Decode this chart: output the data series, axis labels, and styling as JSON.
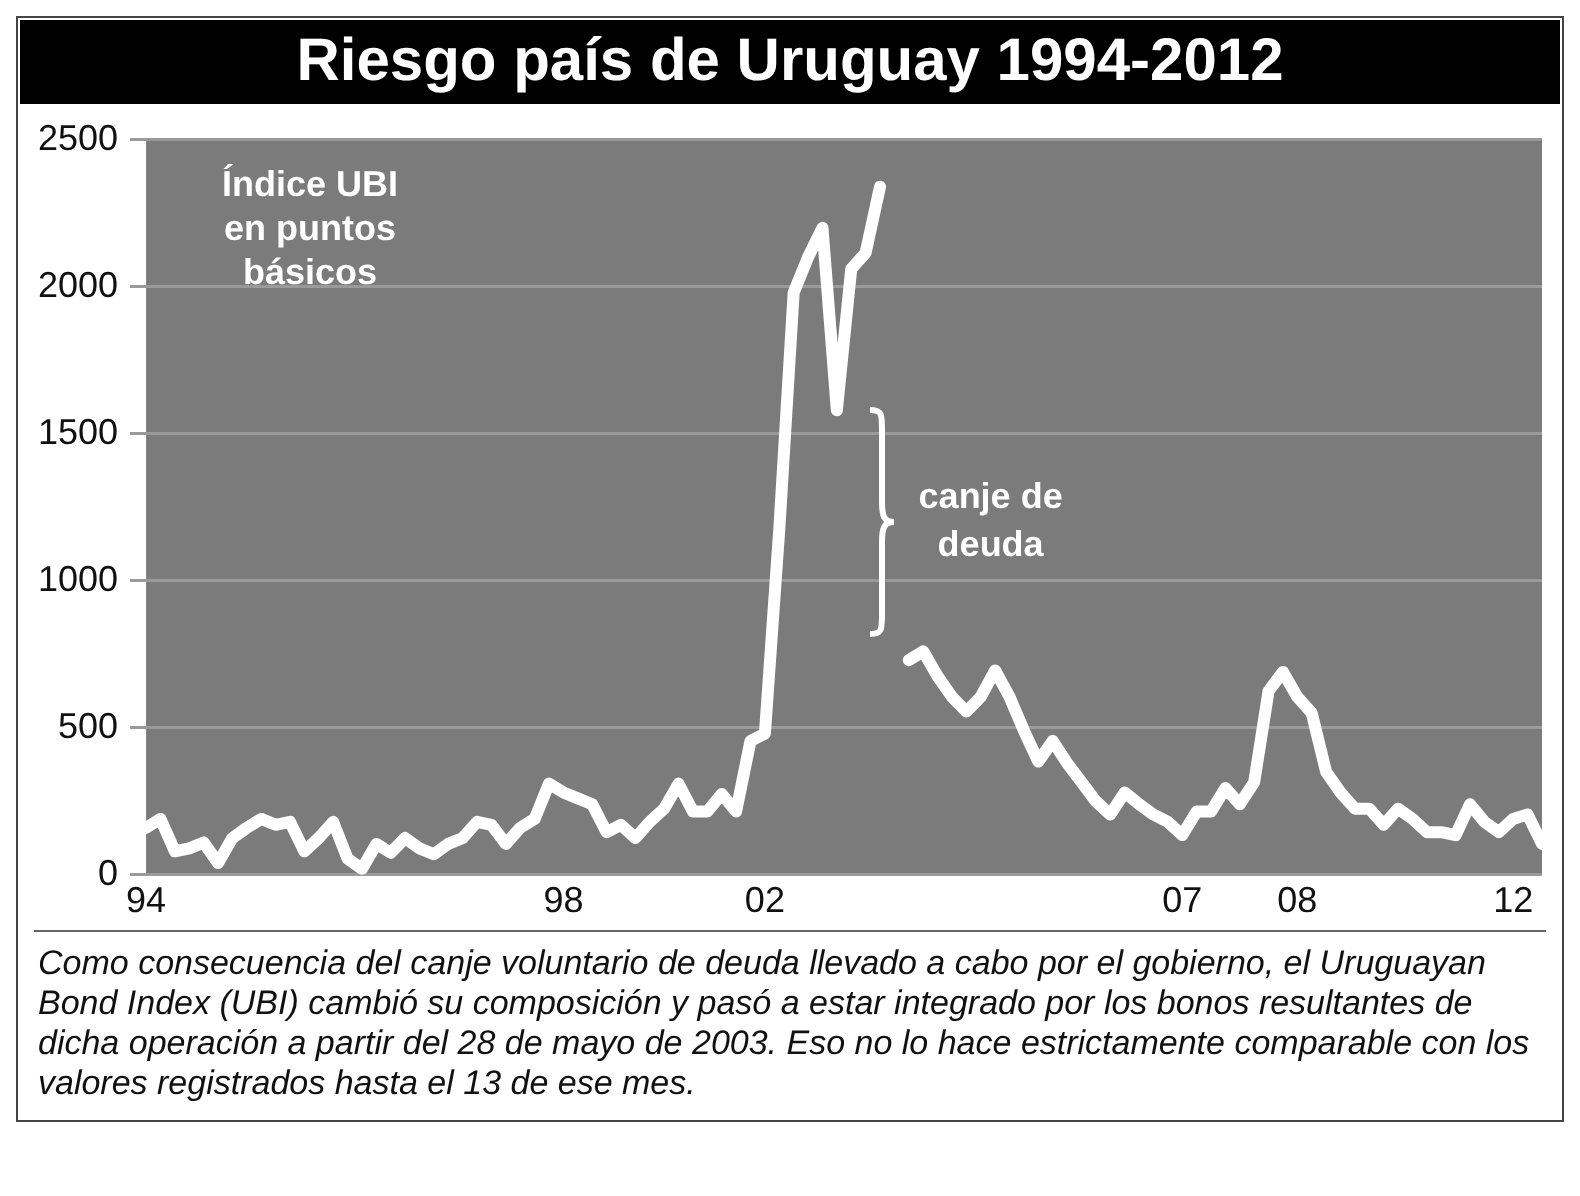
{
  "chart_data": {
    "type": "line",
    "title": "Riesgo país de Uruguay 1994-2012",
    "ylabel": "Índice UBI en puntos básicos",
    "categories": [
      "94",
      null,
      null,
      null,
      null,
      null,
      null,
      null,
      null,
      null,
      null,
      null,
      null,
      null,
      null,
      null,
      null,
      null,
      null,
      null,
      null,
      null,
      null,
      null,
      null,
      null,
      null,
      null,
      null,
      "98",
      null,
      null,
      null,
      null,
      null,
      null,
      null,
      null,
      null,
      null,
      null,
      null,
      null,
      "02",
      null,
      null,
      null,
      null,
      null,
      null,
      null,
      null,
      null,
      null,
      null,
      null,
      null,
      null,
      null,
      null,
      null,
      null,
      null,
      null,
      null,
      null,
      null,
      null,
      null,
      null,
      null,
      null,
      "07",
      null,
      null,
      null,
      null,
      null,
      null,
      null,
      "08",
      null,
      null,
      null,
      null,
      null,
      null,
      null,
      null,
      null,
      null,
      null,
      null,
      null,
      null,
      "12",
      null,
      null
    ],
    "ylim": [
      0,
      2500
    ],
    "yticks": [
      0,
      500,
      1000,
      1500,
      2000,
      2500
    ],
    "grid": "y",
    "series": [
      {
        "color": "#ffffff",
        "values": [
          160,
          190,
          80,
          90,
          110,
          40,
          125,
          160,
          190,
          170,
          180,
          80,
          125,
          180,
          55,
          20,
          105,
          75,
          125,
          90,
          70,
          105,
          125,
          180,
          170,
          105,
          160,
          190,
          310,
          280,
          260,
          240,
          145,
          170,
          125,
          180,
          225,
          310,
          215,
          215,
          275,
          215,
          455,
          480,
          1175,
          1980,
          2100,
          2200,
          1580,
          2060,
          2115,
          2340,
          null,
          730,
          760,
          675,
          605,
          555,
          605,
          695,
          605,
          490,
          385,
          455,
          380,
          315,
          250,
          205,
          280,
          240,
          205,
          180,
          135,
          215,
          215,
          295,
          240,
          315,
          625,
          690,
          605,
          550,
          350,
          280,
          225,
          225,
          170,
          225,
          190,
          145,
          145,
          135,
          240,
          180,
          145,
          190,
          205,
          105
        ]
      }
    ],
    "annotations": [
      "canje de deuda",
      "Como consecuencia del canje voluntario de deuda llevado a cabo por el gobierno, el Uruguayan Bond Index (UBI) cambió su composición y pasó a estar integrado por los bonos resultantes de dicha operación a partir del 28 de mayo de 2003. Eso no lo hace estrictamente comparable con los valores registrados hasta el 13 de ese mes."
    ]
  }
}
